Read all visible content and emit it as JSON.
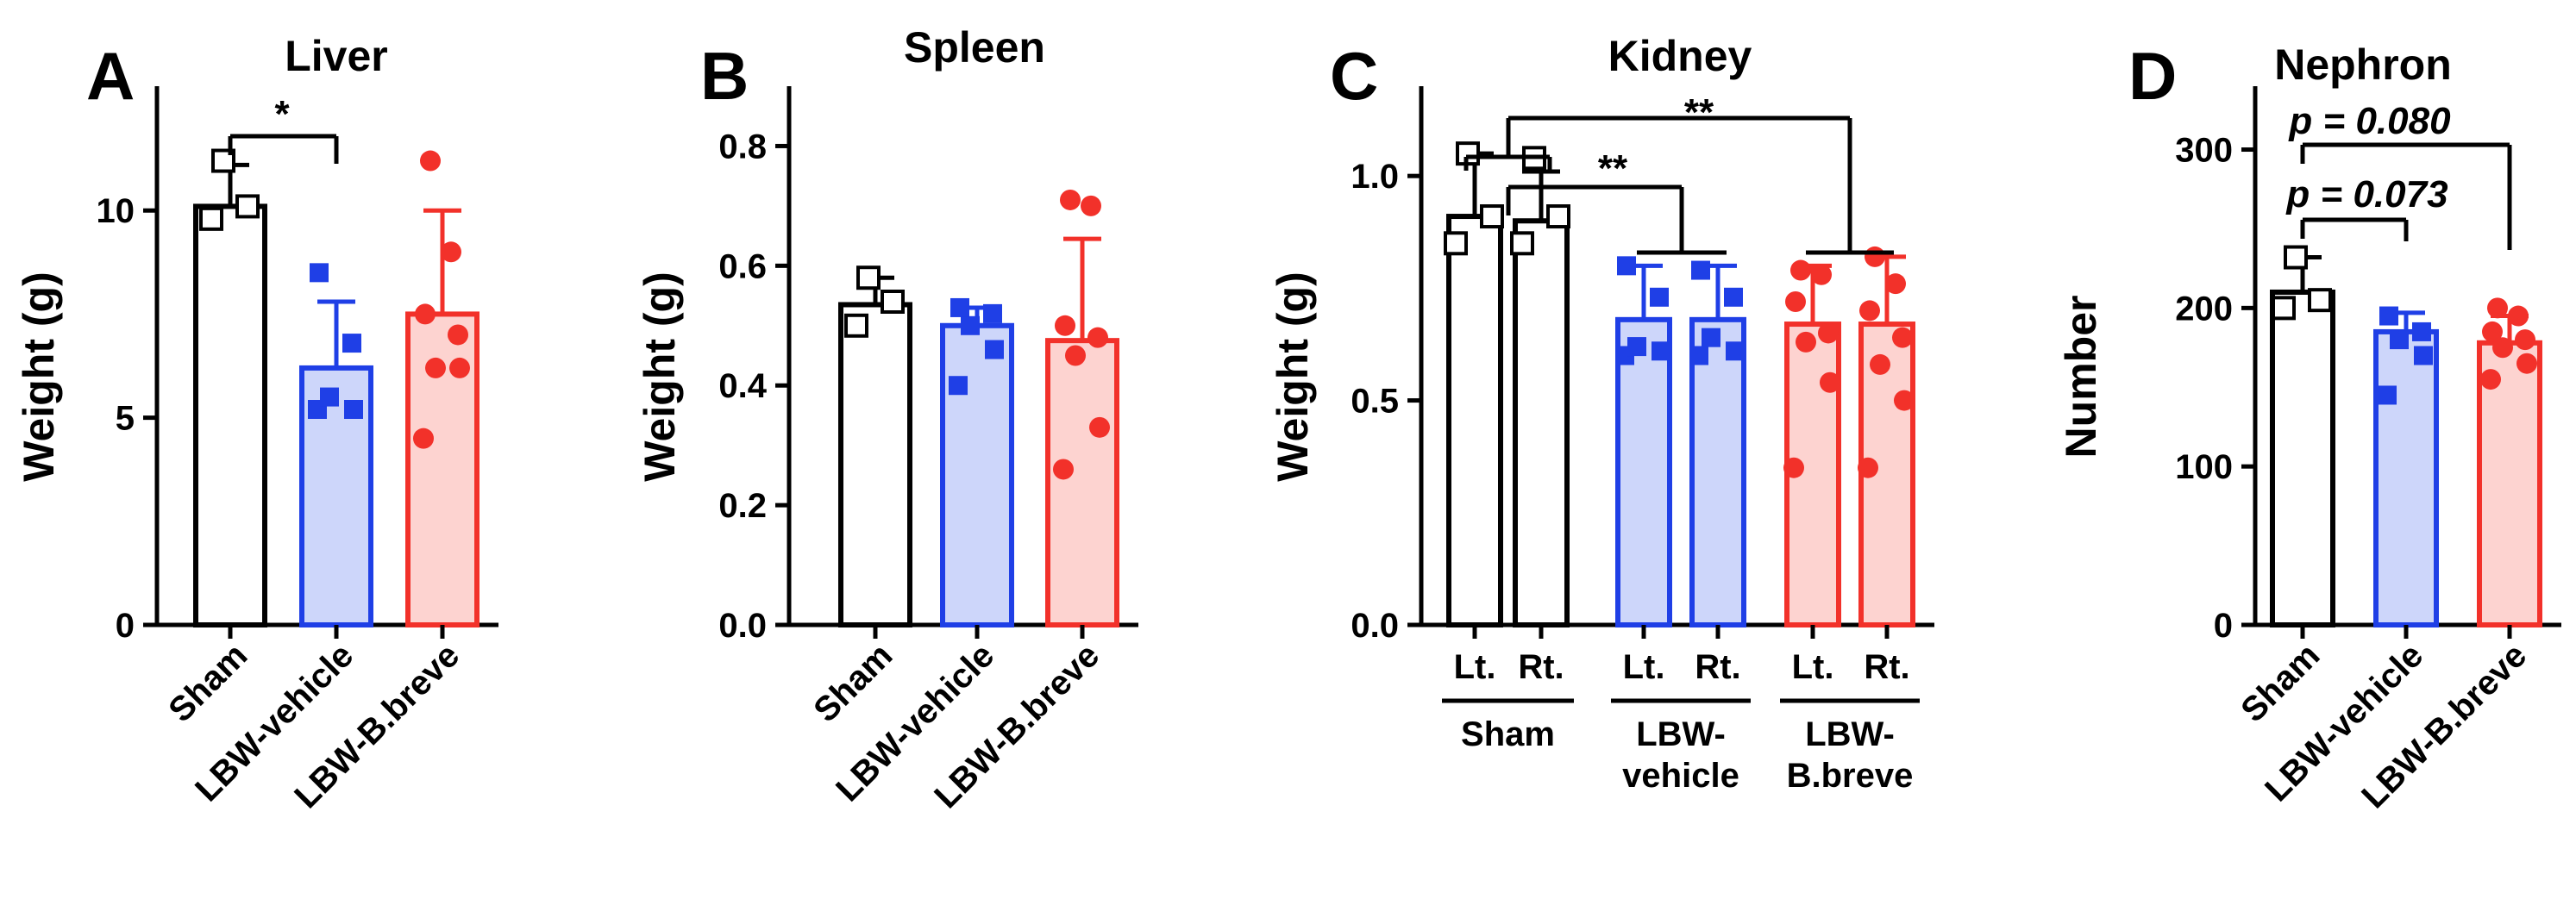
{
  "figure": {
    "panels": [
      "A",
      "B",
      "C",
      "D"
    ],
    "groups": [
      {
        "name": "Sham",
        "stroke": "#000000",
        "fill": "#ffffff",
        "marker": "square-open"
      },
      {
        "name": "LBW-vehicle",
        "stroke": "#1f3fe6",
        "fill": "#cdd6fa",
        "marker": "square"
      },
      {
        "name": "LBW-B.breve",
        "stroke": "#f2312a",
        "fill": "#fdd3d0",
        "marker": "circle"
      }
    ]
  },
  "chart_data": [
    {
      "panel": "A",
      "type": "bar",
      "title": "Liver",
      "ylabel": "Weight (g)",
      "ylim": [
        0,
        13
      ],
      "yticks": [
        0,
        5,
        10
      ],
      "categories": [
        "Sham",
        "LBW-vehicle",
        "LBW-B.breve"
      ],
      "values": [
        10.1,
        6.2,
        7.5
      ],
      "errors": [
        1.0,
        1.6,
        2.5
      ],
      "points": [
        [
          9.8,
          10.1,
          11.2
        ],
        [
          5.2,
          5.2,
          5.5,
          6.8,
          8.5
        ],
        [
          4.5,
          6.2,
          6.2,
          7.0,
          7.5,
          9.0,
          11.2
        ]
      ],
      "significance": [
        {
          "pair": [
            0,
            1
          ],
          "label": "*"
        }
      ]
    },
    {
      "panel": "B",
      "type": "bar",
      "title": "Spleen",
      "ylabel": "Weight (g)",
      "ylim": [
        0,
        0.9
      ],
      "yticks": [
        "0.0",
        "0.2",
        "0.4",
        "0.6",
        "0.8"
      ],
      "categories": [
        "Sham",
        "LBW-vehicle",
        "LBW-B.breve"
      ],
      "values": [
        0.535,
        0.5,
        0.475
      ],
      "errors": [
        0.045,
        0.03,
        0.17
      ],
      "points": [
        [
          0.5,
          0.54,
          0.58
        ],
        [
          0.4,
          0.46,
          0.5,
          0.52,
          0.53
        ],
        [
          0.26,
          0.33,
          0.45,
          0.48,
          0.5,
          0.7,
          0.71
        ]
      ],
      "significance": []
    },
    {
      "panel": "C",
      "type": "bar",
      "title": "Kidney",
      "ylabel": "Weight (g)",
      "ylim": [
        0,
        1.2
      ],
      "yticks": [
        "0.0",
        "0.5",
        "1.0"
      ],
      "categories": [
        "Lt.",
        "Rt.",
        "Lt.",
        "Rt.",
        "Lt.",
        "Rt."
      ],
      "group_labels": [
        "Sham",
        "LBW-vehicle",
        "LBW-B.breve"
      ],
      "group_label_lines": [
        [
          "Sham"
        ],
        [
          "LBW-",
          "vehicle"
        ],
        [
          "LBW-",
          "B.breve"
        ]
      ],
      "values": [
        0.91,
        0.9,
        0.68,
        0.68,
        0.67,
        0.67
      ],
      "errors": [
        0.14,
        0.11,
        0.12,
        0.12,
        0.13,
        0.15
      ],
      "points": [
        [
          0.85,
          0.91,
          1.05
        ],
        [
          0.85,
          0.91,
          1.04
        ],
        [
          0.6,
          0.61,
          0.62,
          0.73,
          0.8
        ],
        [
          0.6,
          0.61,
          0.64,
          0.73,
          0.79
        ],
        [
          0.35,
          0.54,
          0.63,
          0.65,
          0.72,
          0.78,
          0.79
        ],
        [
          0.35,
          0.5,
          0.58,
          0.64,
          0.7,
          0.76,
          0.82
        ]
      ],
      "significance": [
        {
          "label": "**"
        },
        {
          "label": "**"
        }
      ]
    },
    {
      "panel": "D",
      "type": "bar",
      "title": "Nephron",
      "ylabel": "Number",
      "ylim": [
        0,
        340
      ],
      "yticks": [
        0,
        100,
        200,
        300
      ],
      "categories": [
        "Sham",
        "LBW-vehicle",
        "LBW-B.breve"
      ],
      "values": [
        210,
        185,
        178
      ],
      "errors": [
        22,
        12,
        17
      ],
      "points": [
        [
          200,
          205,
          232
        ],
        [
          145,
          170,
          180,
          185,
          195
        ],
        [
          155,
          165,
          175,
          180,
          185,
          195,
          200
        ]
      ],
      "significance": [
        {
          "pair": [
            0,
            1
          ],
          "label": "p = 0.073"
        },
        {
          "pair": [
            0,
            2
          ],
          "label": "p = 0.080"
        }
      ]
    }
  ]
}
